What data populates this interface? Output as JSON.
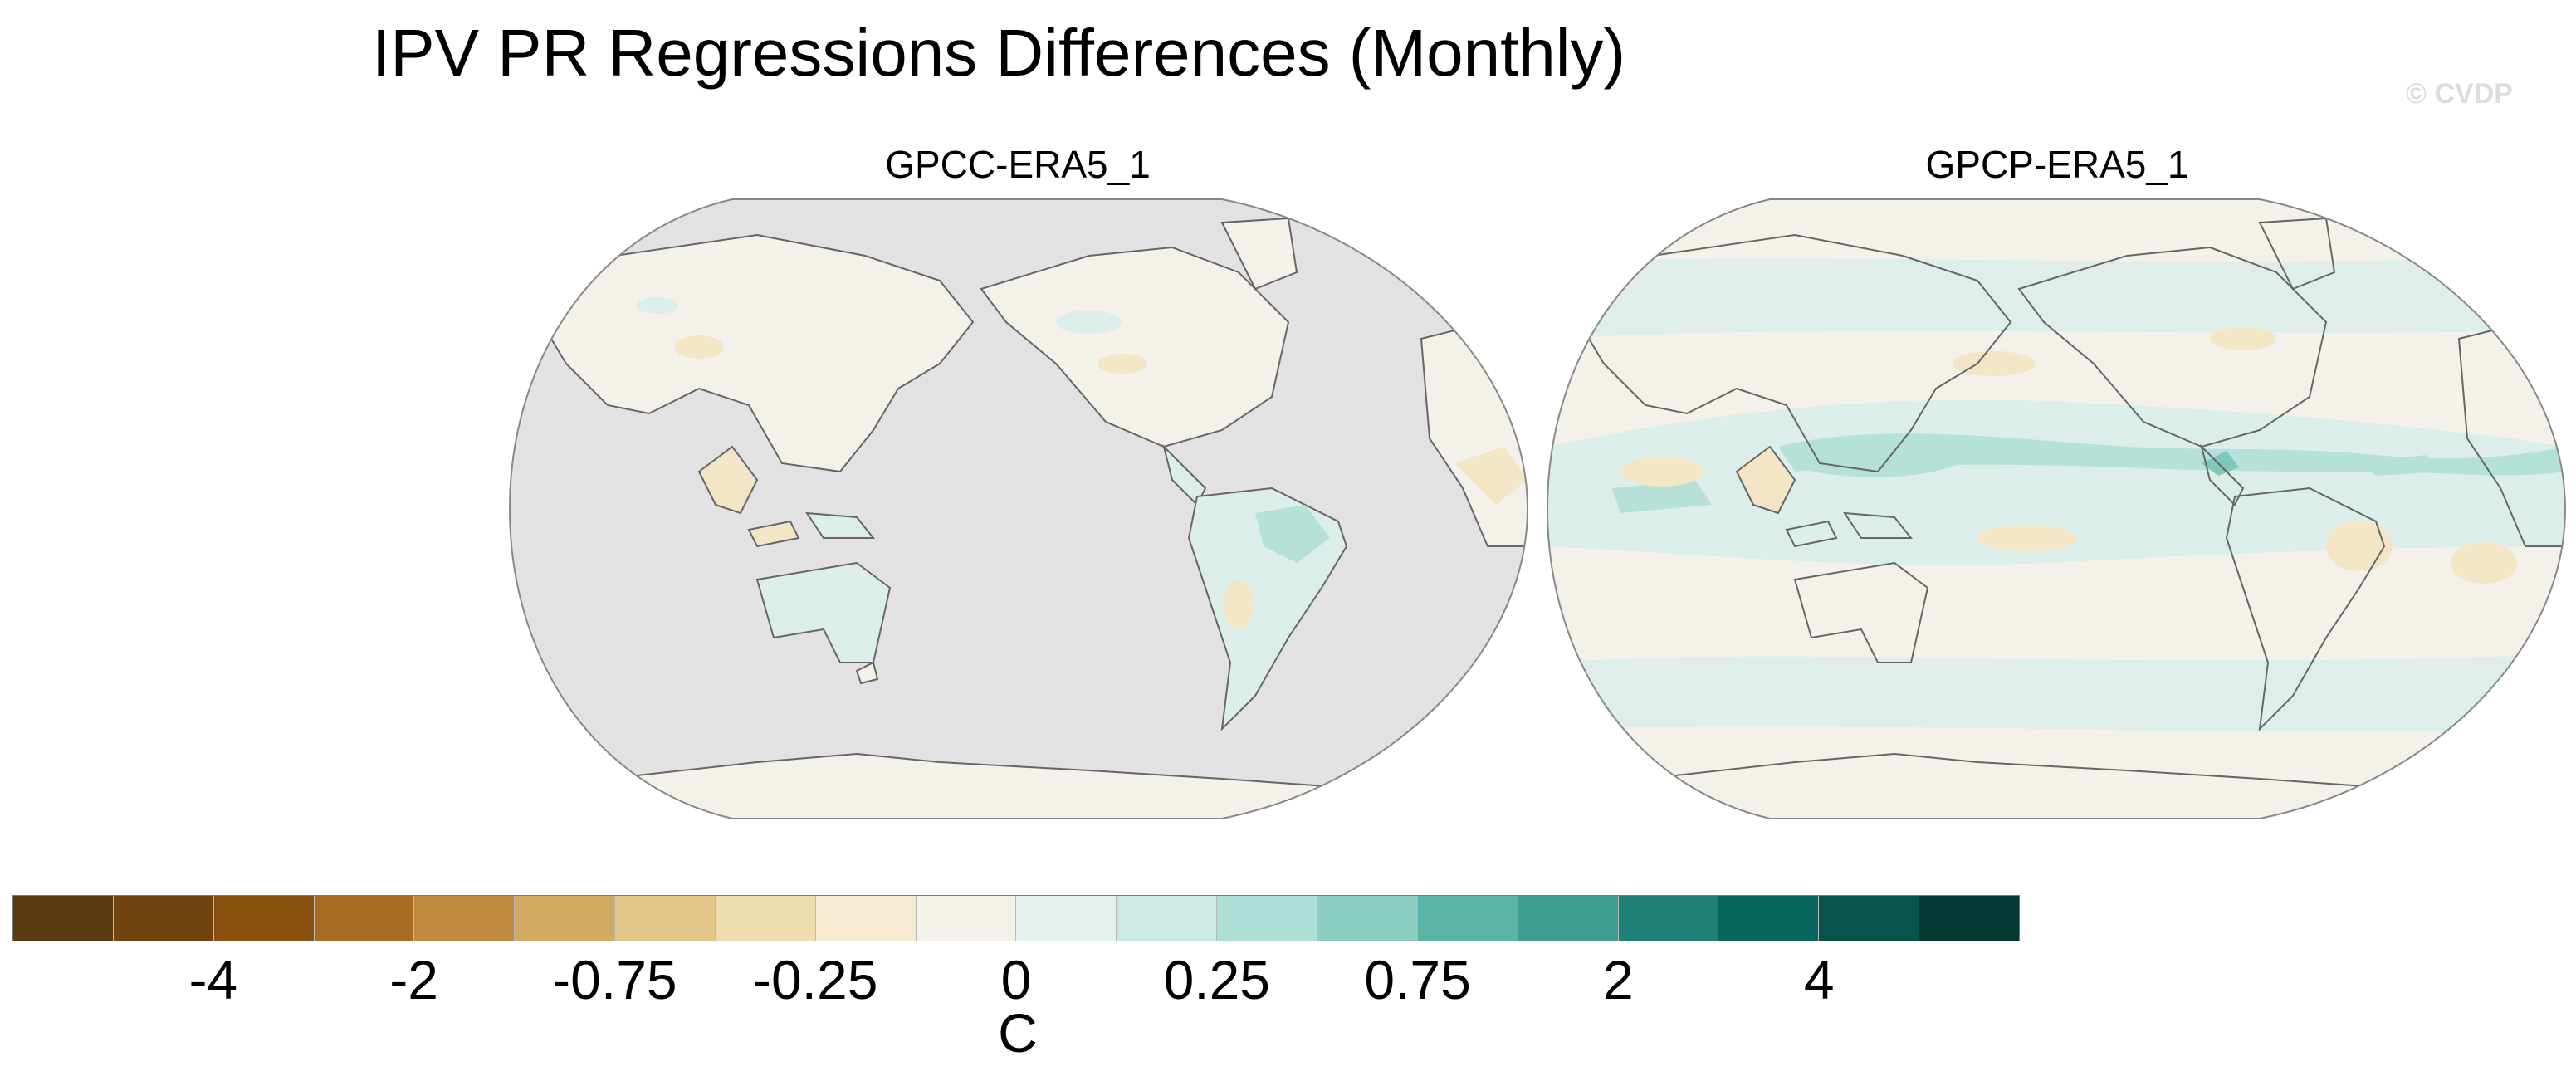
{
  "title": "IPV PR Regressions Differences (Monthly)",
  "watermark": "© CVDP",
  "panels": [
    {
      "title": "GPCC-ERA5_1",
      "ocean_data": "missing"
    },
    {
      "title": "GPCP-ERA5_1",
      "ocean_data": "present"
    }
  ],
  "colorbar": {
    "unit": "C",
    "tick_labels": [
      "-4",
      "-2",
      "-0.75",
      "-0.25",
      "0",
      "0.25",
      "0.75",
      "2",
      "4"
    ],
    "colors": [
      "#5a3a10",
      "#71430f",
      "#8a5010",
      "#a86b22",
      "#c08a3e",
      "#d3aa62",
      "#e3c588",
      "#efdcae",
      "#f6ead0",
      "#f4f1ea",
      "#e6f1ef",
      "#cceae4",
      "#addfd7",
      "#8ccfc2",
      "#5bb4a6",
      "#3d9d90",
      "#1f8076",
      "#06665e",
      "#07544c",
      "#033a33"
    ]
  },
  "colors": {
    "missing": "#e2e2e2",
    "near_zero": "#f4f1ea",
    "pos_light": "#dbeeea",
    "pos_mid": "#b5e1d8",
    "pos_strong": "#7ec9bb",
    "neg_light": "#f3e6c6",
    "neg_mid": "#e9cf96",
    "coast": "#666666"
  }
}
